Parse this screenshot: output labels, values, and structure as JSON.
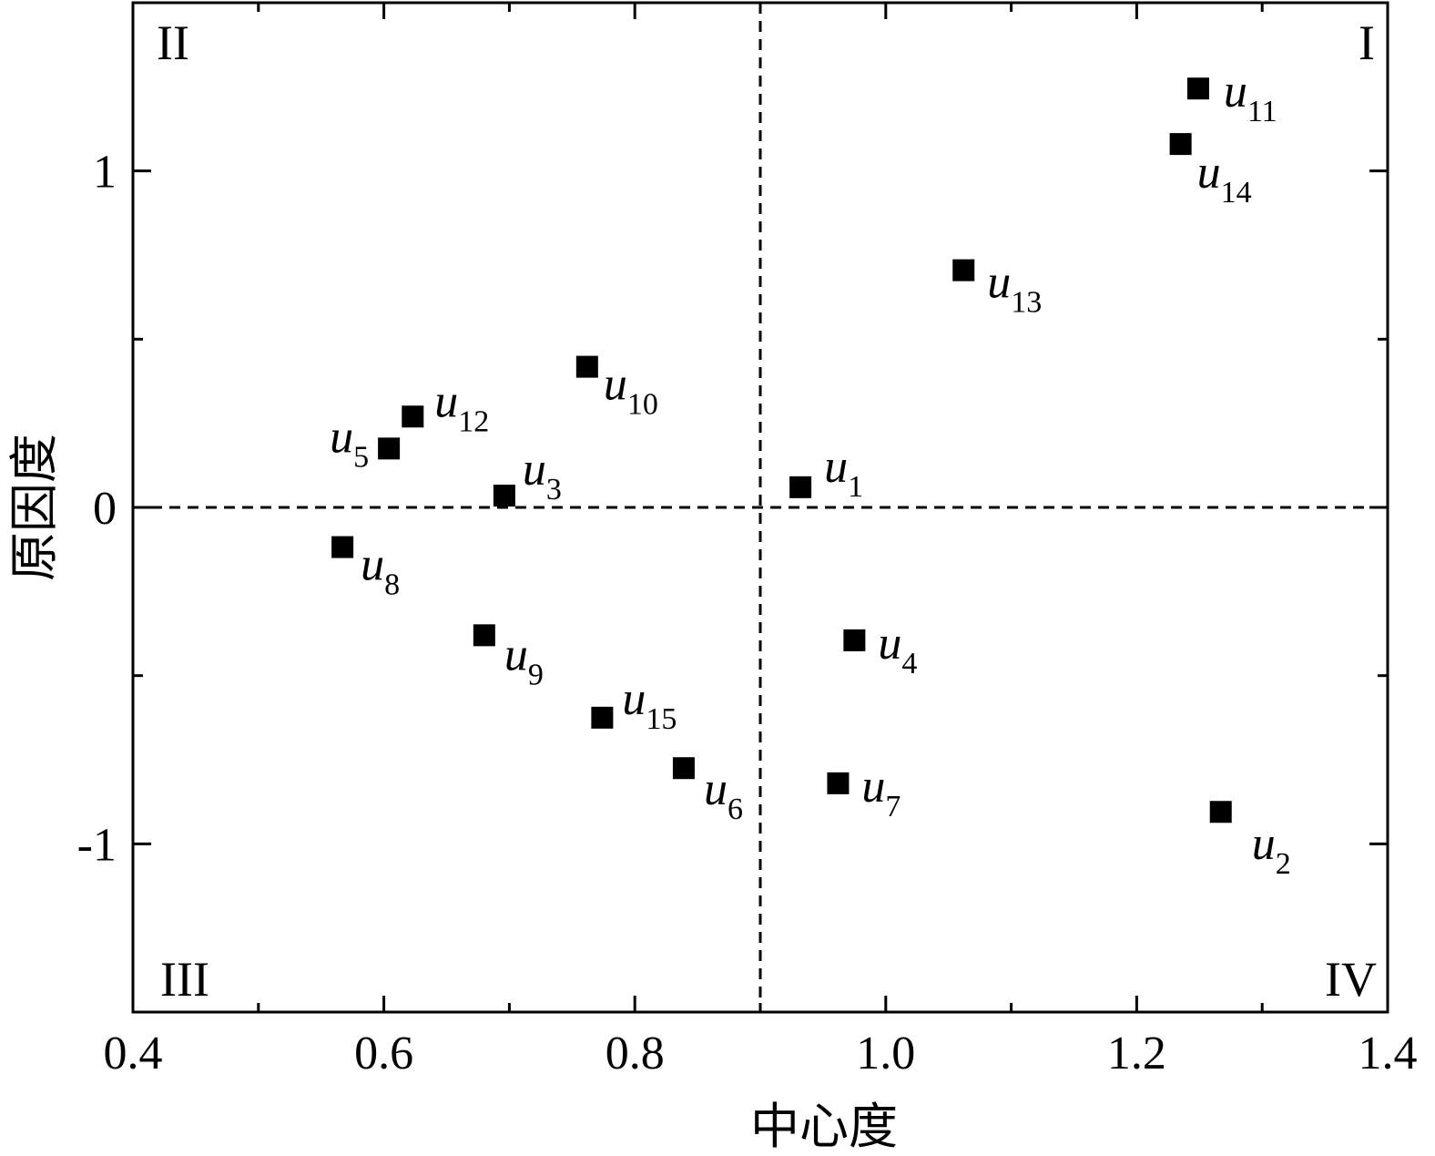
{
  "chart_data": {
    "type": "scatter",
    "xlabel": "中心度",
    "ylabel": "原因度",
    "xlim": [
      0.4,
      1.4
    ],
    "ylim": [
      -1.5,
      1.5
    ],
    "x_ticks": [
      "0.4",
      "0.6",
      "0.8",
      "1.0",
      "1.2",
      "1.4"
    ],
    "y_ticks": [
      "1",
      "0",
      "-1"
    ],
    "reference_lines": {
      "x": 0.9,
      "y": 0,
      "style": "dashed"
    },
    "quadrant_labels": {
      "top_left": "II",
      "top_right": "I",
      "bottom_left": "III",
      "bottom_right": "IV"
    },
    "marker": {
      "shape": "square",
      "color": "#000000"
    },
    "grid": false,
    "points": [
      {
        "name": "u",
        "sub": "1",
        "x": 0.932,
        "y": 0.06
      },
      {
        "name": "u",
        "sub": "2",
        "x": 1.267,
        "y": -0.905
      },
      {
        "name": "u",
        "sub": "3",
        "x": 0.696,
        "y": 0.035
      },
      {
        "name": "u",
        "sub": "4",
        "x": 0.975,
        "y": -0.395
      },
      {
        "name": "u",
        "sub": "5",
        "x": 0.604,
        "y": 0.175
      },
      {
        "name": "u",
        "sub": "6",
        "x": 0.839,
        "y": -0.775
      },
      {
        "name": "u",
        "sub": "7",
        "x": 0.962,
        "y": -0.82
      },
      {
        "name": "u",
        "sub": "8",
        "x": 0.567,
        "y": -0.118
      },
      {
        "name": "u",
        "sub": "9",
        "x": 0.68,
        "y": -0.38
      },
      {
        "name": "u",
        "sub": "10",
        "x": 0.762,
        "y": 0.418
      },
      {
        "name": "u",
        "sub": "11",
        "x": 1.249,
        "y": 1.245
      },
      {
        "name": "u",
        "sub": "12",
        "x": 0.623,
        "y": 0.27
      },
      {
        "name": "u",
        "sub": "13",
        "x": 1.062,
        "y": 0.705
      },
      {
        "name": "u",
        "sub": "14",
        "x": 1.235,
        "y": 1.08
      },
      {
        "name": "u",
        "sub": "15",
        "x": 0.774,
        "y": -0.625
      }
    ]
  }
}
